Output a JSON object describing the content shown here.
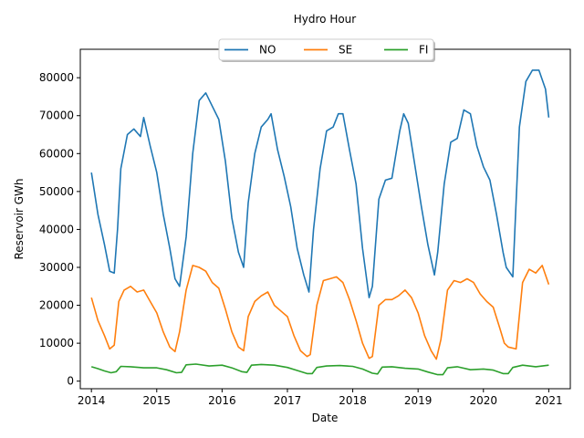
{
  "chart_data": {
    "type": "line",
    "title": "Hydro Hour",
    "xlabel": "Date",
    "ylabel": "Reservoir GWh",
    "xlim": [
      2013.83,
      2021.33
    ],
    "ylim": [
      -2000,
      87500
    ],
    "x_ticks": [
      2014,
      2015,
      2016,
      2017,
      2018,
      2019,
      2020,
      2021
    ],
    "x_tick_labels": [
      "2014",
      "2015",
      "2016",
      "2017",
      "2018",
      "2019",
      "2020",
      "2021"
    ],
    "y_ticks": [
      0,
      10000,
      20000,
      30000,
      40000,
      50000,
      60000,
      70000,
      80000
    ],
    "y_tick_labels": [
      "0",
      "10000",
      "20000",
      "30000",
      "40000",
      "50000",
      "60000",
      "70000",
      "80000"
    ],
    "grid": false,
    "legend_position": "top-center",
    "series": [
      {
        "name": "NO",
        "color": "#1f77b4",
        "x": [
          2014.0,
          2014.1,
          2014.2,
          2014.28,
          2014.35,
          2014.4,
          2014.45,
          2014.55,
          2014.65,
          2014.75,
          2014.8,
          2014.9,
          2015.0,
          2015.1,
          2015.2,
          2015.28,
          2015.35,
          2015.45,
          2015.55,
          2015.65,
          2015.75,
          2015.85,
          2015.95,
          2016.05,
          2016.15,
          2016.25,
          2016.33,
          2016.4,
          2016.5,
          2016.6,
          2016.7,
          2016.75,
          2016.85,
          2016.95,
          2017.05,
          2017.15,
          2017.25,
          2017.33,
          2017.4,
          2017.5,
          2017.6,
          2017.7,
          2017.78,
          2017.85,
          2017.95,
          2018.05,
          2018.15,
          2018.25,
          2018.3,
          2018.4,
          2018.5,
          2018.6,
          2018.72,
          2018.78,
          2018.85,
          2018.95,
          2019.05,
          2019.15,
          2019.25,
          2019.3,
          2019.4,
          2019.5,
          2019.6,
          2019.7,
          2019.8,
          2019.9,
          2020.0,
          2020.1,
          2020.2,
          2020.3,
          2020.35,
          2020.45,
          2020.55,
          2020.65,
          2020.75,
          2020.85,
          2020.95,
          2021.0
        ],
        "y": [
          55000,
          44000,
          36000,
          29000,
          28500,
          40000,
          56000,
          65000,
          66500,
          64500,
          69500,
          62000,
          55000,
          44000,
          35000,
          27000,
          25000,
          38000,
          60000,
          74000,
          76000,
          72500,
          69000,
          58000,
          43000,
          34000,
          30000,
          47000,
          60000,
          67000,
          69000,
          70500,
          61000,
          54000,
          46000,
          35000,
          28000,
          23500,
          40000,
          56000,
          66000,
          67000,
          70500,
          70500,
          61000,
          52000,
          35000,
          22000,
          25000,
          48000,
          53000,
          53500,
          66000,
          70500,
          68000,
          57000,
          46000,
          36000,
          28000,
          34000,
          52000,
          63000,
          64000,
          71500,
          70500,
          62000,
          56500,
          53000,
          44000,
          34000,
          30000,
          27500,
          67000,
          79000,
          82000,
          82000,
          77000,
          69500
        ]
      },
      {
        "name": "SE",
        "color": "#ff7f0e",
        "x": [
          2014.0,
          2014.1,
          2014.2,
          2014.28,
          2014.35,
          2014.42,
          2014.5,
          2014.6,
          2014.7,
          2014.8,
          2014.9,
          2015.0,
          2015.1,
          2015.2,
          2015.28,
          2015.35,
          2015.45,
          2015.55,
          2015.65,
          2015.75,
          2015.85,
          2015.95,
          2016.05,
          2016.15,
          2016.25,
          2016.33,
          2016.4,
          2016.5,
          2016.6,
          2016.7,
          2016.8,
          2016.9,
          2017.0,
          2017.1,
          2017.2,
          2017.3,
          2017.35,
          2017.45,
          2017.55,
          2017.65,
          2017.75,
          2017.85,
          2017.95,
          2018.05,
          2018.15,
          2018.25,
          2018.3,
          2018.4,
          2018.5,
          2018.6,
          2018.7,
          2018.8,
          2018.9,
          2019.0,
          2019.1,
          2019.2,
          2019.28,
          2019.35,
          2019.45,
          2019.55,
          2019.65,
          2019.75,
          2019.85,
          2019.95,
          2020.05,
          2020.15,
          2020.25,
          2020.32,
          2020.38,
          2020.5,
          2020.6,
          2020.7,
          2020.8,
          2020.9,
          2021.0
        ],
        "y": [
          22000,
          16000,
          12000,
          8500,
          9500,
          21000,
          24000,
          25000,
          23500,
          24000,
          21000,
          18000,
          13000,
          9000,
          7800,
          13000,
          24000,
          30500,
          30000,
          29000,
          26000,
          24500,
          19000,
          13000,
          9000,
          8000,
          17000,
          21000,
          22500,
          23500,
          20000,
          18500,
          17000,
          12000,
          8000,
          6500,
          7000,
          20000,
          26500,
          27000,
          27500,
          26000,
          21500,
          16000,
          10000,
          6000,
          6500,
          20000,
          21500,
          21500,
          22500,
          24000,
          22000,
          18000,
          12000,
          8000,
          5800,
          11000,
          24000,
          26500,
          26000,
          27000,
          26000,
          23000,
          21000,
          19500,
          14000,
          10000,
          9000,
          8500,
          26000,
          29500,
          28500,
          30500,
          25500
        ]
      },
      {
        "name": "FI",
        "color": "#2ca02c",
        "x": [
          2014.0,
          2014.1,
          2014.2,
          2014.3,
          2014.38,
          2014.45,
          2014.6,
          2014.8,
          2015.0,
          2015.15,
          2015.3,
          2015.38,
          2015.45,
          2015.6,
          2015.8,
          2016.0,
          2016.15,
          2016.3,
          2016.38,
          2016.45,
          2016.6,
          2016.8,
          2017.0,
          2017.15,
          2017.3,
          2017.38,
          2017.45,
          2017.6,
          2017.8,
          2018.0,
          2018.15,
          2018.3,
          2018.38,
          2018.45,
          2018.6,
          2018.8,
          2019.0,
          2019.15,
          2019.3,
          2019.38,
          2019.45,
          2019.6,
          2019.8,
          2020.0,
          2020.15,
          2020.3,
          2020.38,
          2020.45,
          2020.6,
          2020.8,
          2021.0
        ],
        "y": [
          3800,
          3300,
          2700,
          2200,
          2500,
          3900,
          3800,
          3500,
          3500,
          3000,
          2200,
          2300,
          4300,
          4500,
          4000,
          4200,
          3500,
          2500,
          2300,
          4200,
          4400,
          4200,
          3600,
          2800,
          2000,
          2000,
          3600,
          4000,
          4100,
          3900,
          3200,
          2100,
          1900,
          3700,
          3800,
          3400,
          3200,
          2400,
          1700,
          1700,
          3500,
          3800,
          3000,
          3200,
          2900,
          2000,
          2000,
          3600,
          4200,
          3800,
          4200
        ]
      }
    ]
  }
}
